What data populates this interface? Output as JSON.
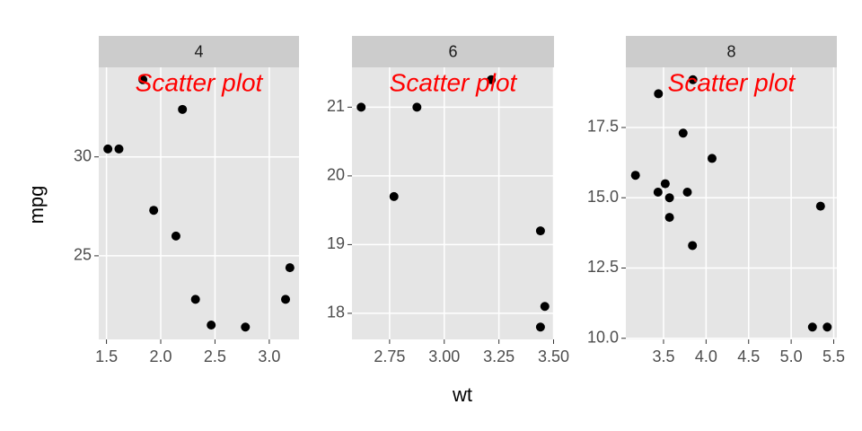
{
  "x_label": "wt",
  "y_label": "mpg",
  "chart_data": [
    {
      "type": "scatter",
      "title": "4",
      "annotation": "Scatter plot",
      "annotation_color": "#ff0000",
      "color": "#000000",
      "grid": true,
      "x": [
        2.32,
        3.19,
        3.15,
        2.2,
        1.615,
        1.835,
        2.465,
        1.935,
        2.14,
        1.513,
        2.78
      ],
      "y": [
        22.8,
        24.4,
        22.8,
        32.4,
        30.4,
        33.9,
        21.5,
        27.3,
        26.0,
        30.4,
        21.4
      ],
      "xlim": [
        1.429,
        3.274
      ],
      "ylim": [
        20.775,
        34.525
      ],
      "xticks": [
        1.5,
        {
          "value": 2,
          "label": "2.0"
        },
        2.5,
        {
          "value": 3,
          "label": "3.0"
        }
      ],
      "yticks": [
        25,
        30
      ]
    },
    {
      "type": "scatter",
      "title": "6",
      "annotation": "Scatter plot",
      "annotation_color": "#ff0000",
      "color": "#000000",
      "grid": true,
      "x": [
        2.62,
        2.875,
        3.215,
        3.46,
        3.44,
        3.44,
        2.77
      ],
      "y": [
        21.0,
        21.0,
        21.4,
        18.1,
        19.2,
        17.8,
        19.7
      ],
      "xlim": [
        2.578,
        3.502
      ],
      "ylim": [
        17.62,
        21.58
      ],
      "xticks": [
        2.75,
        {
          "value": 3,
          "label": "3.00"
        },
        3.25,
        {
          "value": 3.5,
          "label": "3.50"
        }
      ],
      "yticks": [
        18,
        19,
        20,
        21
      ]
    },
    {
      "type": "scatter",
      "title": "8",
      "annotation": "Scatter plot",
      "annotation_color": "#ff0000",
      "color": "#000000",
      "grid": true,
      "x": [
        3.44,
        3.57,
        4.07,
        3.73,
        3.78,
        5.25,
        5.424,
        5.345,
        3.52,
        3.435,
        3.84,
        3.845,
        3.17,
        3.57
      ],
      "y": [
        18.7,
        14.3,
        16.4,
        17.3,
        15.2,
        10.4,
        10.4,
        14.7,
        15.5,
        15.2,
        13.3,
        19.2,
        15.8,
        15.0
      ],
      "xlim": [
        3.057,
        5.537
      ],
      "ylim": [
        9.96,
        19.64
      ],
      "xticks": [
        3.5,
        {
          "value": 4,
          "label": "4.0"
        },
        4.5,
        {
          "value": 5,
          "label": "5.0"
        },
        5.5
      ],
      "yticks": [
        {
          "value": 10,
          "label": "10.0"
        },
        12.5,
        {
          "value": 15,
          "label": "15.0"
        },
        17.5
      ]
    }
  ]
}
